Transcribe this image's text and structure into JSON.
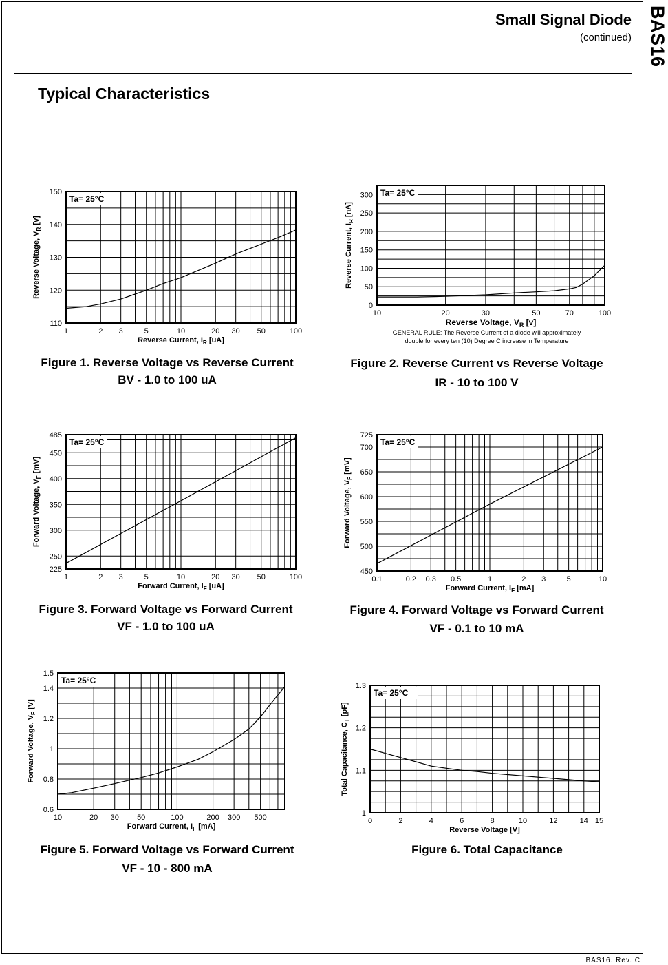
{
  "header": {
    "title": "Small Signal Diode",
    "subtitle": "(continued)",
    "part": "BAS16"
  },
  "section_title": "Typical Characteristics",
  "footer": "BAS16. Rev. C",
  "chart_data": [
    {
      "type": "line",
      "caption": [
        "Figure 1. Reverse Voltage vs Reverse Current",
        "BV - 1.0 to 100 uA"
      ],
      "annotation": "Ta= 25°C",
      "xlabel": {
        "text": "Reverse Current, I",
        "sub": "R",
        "suffix": " [uA]"
      },
      "ylabel": {
        "text": "Reverse Voltage, V",
        "sub": "R",
        "suffix": " [v]"
      },
      "xscale": "log",
      "xlim": [
        1,
        100
      ],
      "ylim": [
        110,
        150
      ],
      "xticks": [
        "1",
        "2",
        "3",
        "5",
        "10",
        "20",
        "30",
        "50",
        "100"
      ],
      "yticks": [
        "110",
        "120",
        "130",
        "140",
        "150"
      ],
      "grid": true,
      "x": [
        1,
        1.5,
        2,
        3,
        4,
        5,
        7,
        10,
        20,
        30,
        50,
        70,
        100
      ],
      "y": [
        114.5,
        115,
        115.8,
        117.3,
        118.8,
        120,
        122,
        123.8,
        128.2,
        131,
        134,
        136,
        138.3
      ]
    },
    {
      "type": "line",
      "caption": [
        "Figure 2. Reverse Current vs Reverse Voltage",
        "IR - 10 to 100 V"
      ],
      "annotation": "Ta= 25°C",
      "xlabel": {
        "text": "Reverse Voltage, V",
        "sub": "R",
        "suffix": " [v]"
      },
      "ylabel": {
        "text": "Reverse Current, I",
        "sub": "R",
        "suffix": " [nA]"
      },
      "note": [
        "GENERAL RULE: The Reverse Current of a diode will approximately",
        "double for every ten (10) Degree C increase in Temperature"
      ],
      "xscale": "log",
      "xlim": [
        10,
        100
      ],
      "ylim": [
        0,
        325
      ],
      "xticks": [
        "10",
        "20",
        "30",
        "50",
        "70",
        "100"
      ],
      "yticks": [
        "0",
        "50",
        "100",
        "150",
        "200",
        "250",
        "300"
      ],
      "grid": true,
      "x": [
        10,
        15,
        20,
        30,
        40,
        50,
        60,
        70,
        75,
        80,
        90,
        100
      ],
      "y": [
        22,
        22,
        24,
        28,
        33,
        36,
        39,
        44,
        48,
        57,
        80,
        108
      ]
    },
    {
      "type": "line",
      "caption": [
        "Figure 3. Forward Voltage  vs Forward Current",
        "VF - 1.0 to 100 uA"
      ],
      "annotation": "Ta= 25°C",
      "xlabel": {
        "text": "Forward Current, I",
        "sub": "F",
        "suffix": " [uA]"
      },
      "ylabel": {
        "text": "Forward Voltage, V",
        "sub": "F",
        "suffix": " [mV]"
      },
      "xscale": "log",
      "xlim": [
        1,
        100
      ],
      "ylim": [
        225,
        485
      ],
      "xticks": [
        "1",
        "2",
        "3",
        "5",
        "10",
        "20",
        "30",
        "50",
        "100"
      ],
      "yticks": [
        "225",
        "250",
        "300",
        "350",
        "400",
        "450",
        "485"
      ],
      "grid": true,
      "x": [
        1,
        10,
        100
      ],
      "y": [
        236,
        357,
        479
      ]
    },
    {
      "type": "line",
      "caption": [
        "Figure 4. Forward Voltage  vs Forward Current",
        "VF - 0.1 to 10 mA"
      ],
      "annotation": "Ta= 25°C",
      "xlabel": {
        "text": "Forward Current, I",
        "sub": "F",
        "suffix": " [mA]"
      },
      "ylabel": {
        "text": "Forward Voltage, V",
        "sub": "F",
        "suffix": " [mV]"
      },
      "xscale": "log",
      "xlim": [
        0.1,
        10
      ],
      "ylim": [
        450,
        725
      ],
      "xticks": [
        "0.1",
        "0.2",
        "0.3",
        "0.5",
        "1",
        "2",
        "3",
        "5",
        "10"
      ],
      "yticks": [
        "450",
        "500",
        "550",
        "600",
        "650",
        "700",
        "725"
      ],
      "grid": true,
      "x": [
        0.1,
        1,
        10
      ],
      "y": [
        465,
        585,
        700
      ]
    },
    {
      "type": "line",
      "caption": [
        "Figure 5. Forward Voltage  vs Forward Current",
        "VF - 10 - 800 mA"
      ],
      "annotation": "Ta= 25°C",
      "xlabel": {
        "text": "Forward Current, I",
        "sub": "F",
        "suffix": " [mA]"
      },
      "ylabel": {
        "text": "Forward Voltage, V",
        "sub": "F",
        "suffix": " [V]"
      },
      "xscale": "log",
      "xlim": [
        10,
        800
      ],
      "ylim": [
        0.6,
        1.5
      ],
      "xticks": [
        "10",
        "20",
        "30",
        "50",
        "100",
        "200",
        "300",
        "500"
      ],
      "yticks": [
        "0.6",
        "0.8",
        "1",
        "1.2",
        "1.4",
        "1.5"
      ],
      "grid": true,
      "x": [
        10,
        13,
        20,
        30,
        50,
        70,
        100,
        150,
        200,
        300,
        400,
        500,
        600,
        800
      ],
      "y": [
        0.7,
        0.71,
        0.74,
        0.77,
        0.81,
        0.84,
        0.88,
        0.93,
        0.98,
        1.06,
        1.13,
        1.21,
        1.29,
        1.41
      ]
    },
    {
      "type": "line",
      "caption": [
        "Figure 6. Total Capacitance"
      ],
      "annotation": "Ta= 25°C",
      "xlabel": {
        "text": "Reverse Voltage [V]",
        "sub": "",
        "suffix": ""
      },
      "ylabel": {
        "text": "Total Capacitance, C",
        "sub": "T",
        "suffix": " [pF]"
      },
      "xscale": "linear",
      "xlim": [
        0,
        15
      ],
      "ylim": [
        1,
        1.3
      ],
      "xticks": [
        "0",
        "2",
        "4",
        "6",
        "8",
        "10",
        "12",
        "14",
        "15"
      ],
      "yticks": [
        "1",
        "1.1",
        "1.2",
        "1.3"
      ],
      "grid": true,
      "x": [
        0,
        1,
        2,
        3,
        4,
        5,
        6,
        7,
        8,
        9,
        10,
        11,
        12,
        13,
        14,
        15
      ],
      "y": [
        1.15,
        1.14,
        1.13,
        1.12,
        1.11,
        1.105,
        1.1,
        1.097,
        1.093,
        1.09,
        1.087,
        1.084,
        1.081,
        1.078,
        1.075,
        1.073
      ]
    }
  ]
}
